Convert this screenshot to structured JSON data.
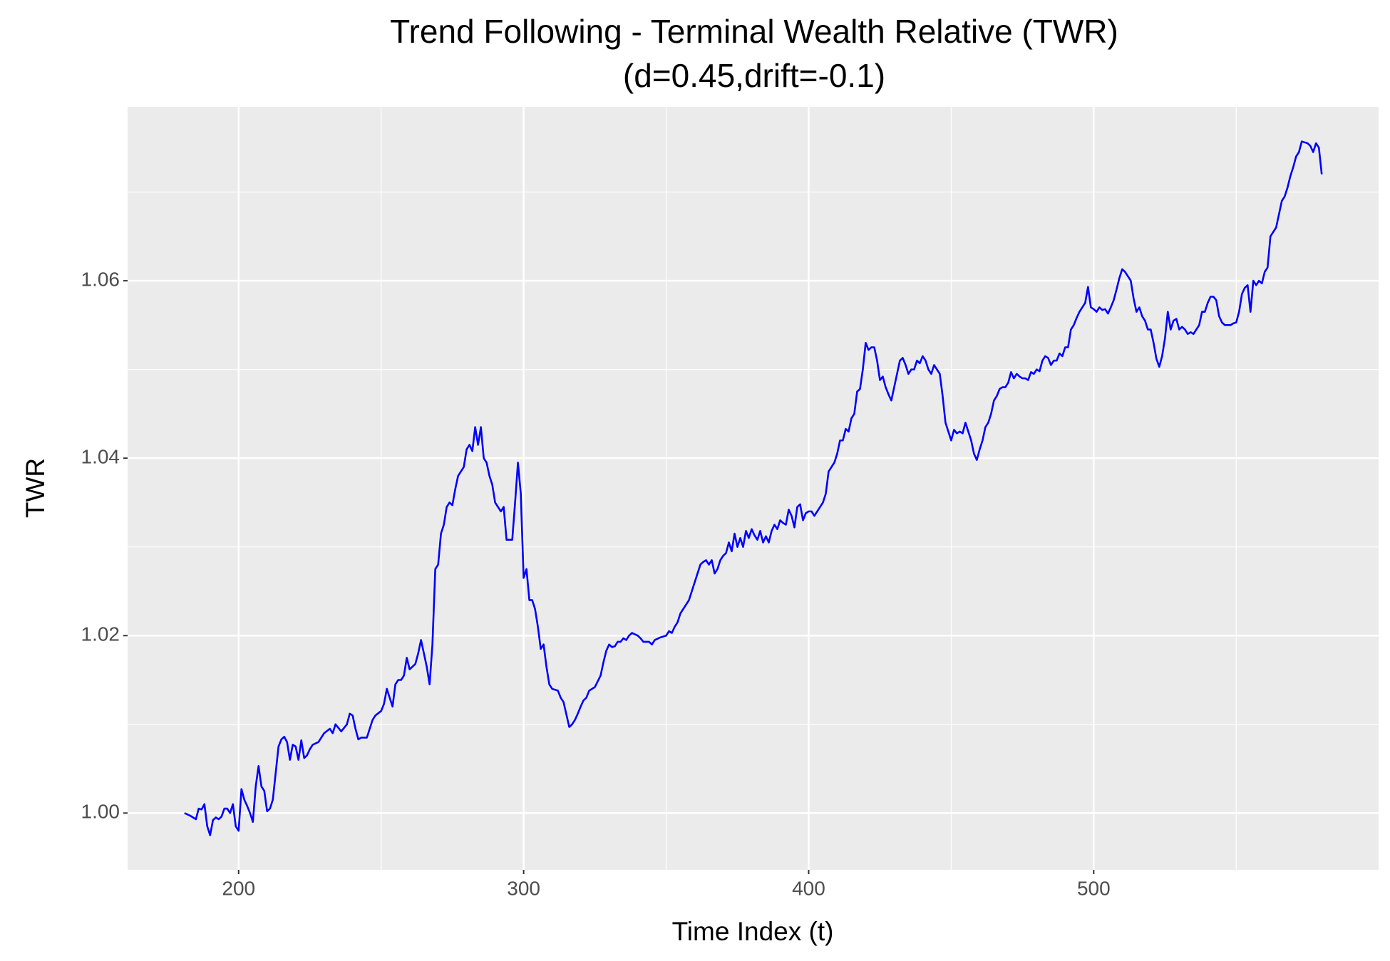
{
  "chart_data": {
    "type": "line",
    "title": "Trend Following - Terminal Wealth Relative (TWR)",
    "subtitle": "(d=0.45,drift=-0.1)",
    "x_label": "Time Index (t)",
    "y_label": "TWR",
    "xlim": [
      161.05,
      599.95
    ],
    "ylim": [
      0.9936,
      1.0796
    ],
    "xticks": [
      200,
      300,
      400,
      500
    ],
    "yticks": [
      {
        "value": 1.0,
        "label": "1.00"
      },
      {
        "value": 1.02,
        "label": "1.02"
      },
      {
        "value": 1.04,
        "label": "1.04"
      },
      {
        "value": 1.06,
        "label": "1.06"
      }
    ],
    "x_minor_grid": [
      250,
      350,
      450,
      550
    ],
    "y_minor_grid": [
      1.01,
      1.03,
      1.05,
      1.07
    ],
    "grid": true,
    "series": [
      {
        "color": "#0000ff",
        "x": [
          181,
          183,
          185,
          186,
          187,
          188,
          189,
          190,
          191,
          192,
          193,
          194,
          195,
          196,
          197,
          198,
          199,
          200,
          201,
          202,
          203,
          204,
          205,
          206,
          207,
          208,
          209,
          210,
          211,
          212,
          213,
          214,
          215,
          216,
          217,
          218,
          219,
          220,
          221,
          222,
          223,
          224,
          225,
          226,
          228,
          230,
          232,
          233,
          234,
          236,
          238,
          239,
          240,
          241,
          242,
          243,
          245,
          246,
          247,
          248,
          250,
          251,
          252,
          253,
          254,
          255,
          256,
          257,
          258,
          259,
          260,
          261,
          262,
          263,
          264,
          265,
          266,
          267,
          268,
          269,
          270,
          271,
          272,
          273,
          274,
          275,
          276,
          277,
          278,
          279,
          280,
          281,
          282,
          283,
          284,
          285,
          286,
          287,
          288,
          289,
          290,
          291,
          292,
          293,
          294,
          295,
          296,
          297,
          298,
          299,
          300,
          301,
          302,
          303,
          304,
          305,
          306,
          307,
          308,
          309,
          310,
          312,
          313,
          314,
          316,
          317,
          318,
          319,
          320,
          321,
          322,
          323,
          325,
          327,
          328,
          329,
          330,
          331,
          332,
          333,
          334,
          335,
          336,
          337,
          338,
          340,
          341,
          342,
          344,
          345,
          346,
          348,
          350,
          351,
          352,
          353,
          354,
          355,
          356,
          357,
          358,
          359,
          360,
          361,
          362,
          363,
          364,
          365,
          366,
          367,
          368,
          369,
          370,
          371,
          372,
          373,
          374,
          375,
          376,
          377,
          378,
          379,
          380,
          381,
          382,
          383,
          384,
          385,
          386,
          387,
          388,
          389,
          390,
          391,
          392,
          393,
          394,
          395,
          396,
          397,
          398,
          399,
          400,
          401,
          402,
          403,
          404,
          405,
          406,
          407,
          408,
          409,
          410,
          411,
          412,
          413,
          414,
          415,
          416,
          417,
          418,
          419,
          420,
          421,
          422,
          423,
          424,
          425,
          426,
          427,
          428,
          429,
          430,
          431,
          432,
          433,
          434,
          435,
          436,
          437,
          438,
          439,
          440,
          441,
          442,
          443,
          444,
          445,
          446,
          447,
          448,
          449,
          450,
          451,
          452,
          453,
          454,
          455,
          456,
          457,
          458,
          459,
          460,
          461,
          462,
          463,
          464,
          465,
          466,
          467,
          468,
          469,
          470,
          471,
          472,
          473,
          474,
          475,
          476,
          477,
          478,
          479,
          480,
          481,
          482,
          483,
          484,
          485,
          486,
          487,
          488,
          489,
          490,
          491,
          492,
          493,
          494,
          495,
          496,
          497,
          498,
          499,
          500,
          501,
          502,
          503,
          504,
          505,
          506,
          507,
          508,
          509,
          510,
          511,
          512,
          513,
          514,
          515,
          516,
          517,
          518,
          519,
          520,
          521,
          522,
          523,
          524,
          525,
          526,
          527,
          528,
          529,
          530,
          531,
          532,
          533,
          534,
          535,
          536,
          537,
          538,
          539,
          540,
          541,
          542,
          543,
          544,
          545,
          546,
          548,
          549,
          550,
          551,
          552,
          553,
          554,
          555,
          556,
          557,
          558,
          559,
          560,
          561,
          562,
          563,
          564,
          565,
          566,
          567,
          568,
          569,
          570,
          571,
          572,
          573,
          574,
          575,
          576,
          577,
          578,
          579,
          580
        ],
        "values": [
          1.0,
          0.9997,
          0.9993,
          1.0005,
          1.0004,
          1.001,
          0.9985,
          0.9975,
          0.9992,
          0.9995,
          0.9993,
          0.9996,
          1.0005,
          1.0005,
          1.0,
          1.001,
          0.9985,
          0.998,
          1.0027,
          1.0015,
          1.0008,
          1.0,
          0.999,
          1.003,
          1.0053,
          1.003,
          1.0025,
          1.0002,
          1.0005,
          1.0015,
          1.0045,
          1.0075,
          1.0083,
          1.0086,
          1.008,
          1.006,
          1.0077,
          1.0075,
          1.006,
          1.0082,
          1.0062,
          1.0065,
          1.0072,
          1.0077,
          1.008,
          1.009,
          1.0095,
          1.009,
          1.01,
          1.0092,
          1.01,
          1.0112,
          1.011,
          1.0095,
          1.0083,
          1.0085,
          1.0085,
          1.0095,
          1.0105,
          1.011,
          1.0115,
          1.0123,
          1.014,
          1.013,
          1.012,
          1.0145,
          1.015,
          1.015,
          1.0155,
          1.0175,
          1.0162,
          1.0165,
          1.0168,
          1.018,
          1.0195,
          1.018,
          1.0165,
          1.0145,
          1.019,
          1.0275,
          1.028,
          1.0315,
          1.0325,
          1.0345,
          1.035,
          1.0347,
          1.0365,
          1.038,
          1.0385,
          1.039,
          1.041,
          1.0415,
          1.0408,
          1.0435,
          1.0415,
          1.0435,
          1.04,
          1.0395,
          1.038,
          1.037,
          1.035,
          1.0345,
          1.034,
          1.0345,
          1.0308,
          1.0308,
          1.0308,
          1.035,
          1.0395,
          1.036,
          1.0265,
          1.0275,
          1.024,
          1.024,
          1.023,
          1.021,
          1.0185,
          1.019,
          1.0165,
          1.0145,
          1.014,
          1.0138,
          1.013,
          1.0125,
          1.0097,
          1.01,
          1.0105,
          1.0112,
          1.012,
          1.0127,
          1.013,
          1.0138,
          1.0142,
          1.0155,
          1.017,
          1.0183,
          1.019,
          1.0187,
          1.0188,
          1.0193,
          1.0193,
          1.0197,
          1.0195,
          1.02,
          1.0203,
          1.02,
          1.0197,
          1.0193,
          1.0193,
          1.019,
          1.0195,
          1.0198,
          1.02,
          1.0205,
          1.0203,
          1.021,
          1.0215,
          1.0225,
          1.023,
          1.0235,
          1.024,
          1.025,
          1.026,
          1.027,
          1.028,
          1.0283,
          1.0285,
          1.028,
          1.0285,
          1.027,
          1.0275,
          1.0285,
          1.029,
          1.0293,
          1.0305,
          1.0295,
          1.0315,
          1.03,
          1.031,
          1.03,
          1.0318,
          1.031,
          1.032,
          1.0313,
          1.0308,
          1.0318,
          1.0305,
          1.0312,
          1.0305,
          1.0318,
          1.0325,
          1.032,
          1.033,
          1.0327,
          1.0325,
          1.0342,
          1.0335,
          1.0322,
          1.0345,
          1.0348,
          1.033,
          1.0338,
          1.034,
          1.034,
          1.0335,
          1.034,
          1.0345,
          1.035,
          1.036,
          1.0385,
          1.039,
          1.0395,
          1.0405,
          1.042,
          1.042,
          1.0433,
          1.043,
          1.0445,
          1.045,
          1.0475,
          1.0478,
          1.05,
          1.053,
          1.0522,
          1.0525,
          1.0525,
          1.051,
          1.0488,
          1.0492,
          1.048,
          1.0472,
          1.0465,
          1.048,
          1.0495,
          1.051,
          1.0513,
          1.0505,
          1.0495,
          1.05,
          1.05,
          1.051,
          1.0507,
          1.0515,
          1.051,
          1.05,
          1.0495,
          1.0505,
          1.05,
          1.0495,
          1.047,
          1.044,
          1.043,
          1.042,
          1.0432,
          1.0428,
          1.043,
          1.0428,
          1.044,
          1.043,
          1.042,
          1.0405,
          1.0398,
          1.041,
          1.042,
          1.0435,
          1.044,
          1.045,
          1.0465,
          1.047,
          1.0478,
          1.048,
          1.048,
          1.0485,
          1.0497,
          1.049,
          1.0495,
          1.0492,
          1.049,
          1.049,
          1.0488,
          1.0497,
          1.0495,
          1.05,
          1.0498,
          1.051,
          1.0515,
          1.0513,
          1.0505,
          1.051,
          1.051,
          1.0518,
          1.0515,
          1.0525,
          1.0525,
          1.0545,
          1.055,
          1.0558,
          1.0565,
          1.057,
          1.0575,
          1.0593,
          1.057,
          1.0568,
          1.0565,
          1.057,
          1.0567,
          1.0568,
          1.0563,
          1.057,
          1.0578,
          1.059,
          1.0603,
          1.0613,
          1.061,
          1.0605,
          1.06,
          1.058,
          1.0565,
          1.057,
          1.056,
          1.0555,
          1.0545,
          1.0545,
          1.053,
          1.0512,
          1.0503,
          1.0515,
          1.0535,
          1.0565,
          1.0545,
          1.0555,
          1.0557,
          1.0545,
          1.0548,
          1.0545,
          1.054,
          1.0542,
          1.054,
          1.0545,
          1.055,
          1.0565,
          1.0565,
          1.0575,
          1.0582,
          1.0582,
          1.0578,
          1.056,
          1.0553,
          1.055,
          1.055,
          1.0552,
          1.0553,
          1.0565,
          1.0585,
          1.0592,
          1.0595,
          1.0565,
          1.06,
          1.0595,
          1.06,
          1.0597,
          1.061,
          1.0615,
          1.065,
          1.0655,
          1.066,
          1.0675,
          1.069,
          1.0695,
          1.0705,
          1.0718,
          1.0728,
          1.074,
          1.0745,
          1.0757,
          1.0756,
          1.0755,
          1.0752,
          1.0745,
          1.0755,
          1.075,
          1.072
        ]
      }
    ]
  }
}
